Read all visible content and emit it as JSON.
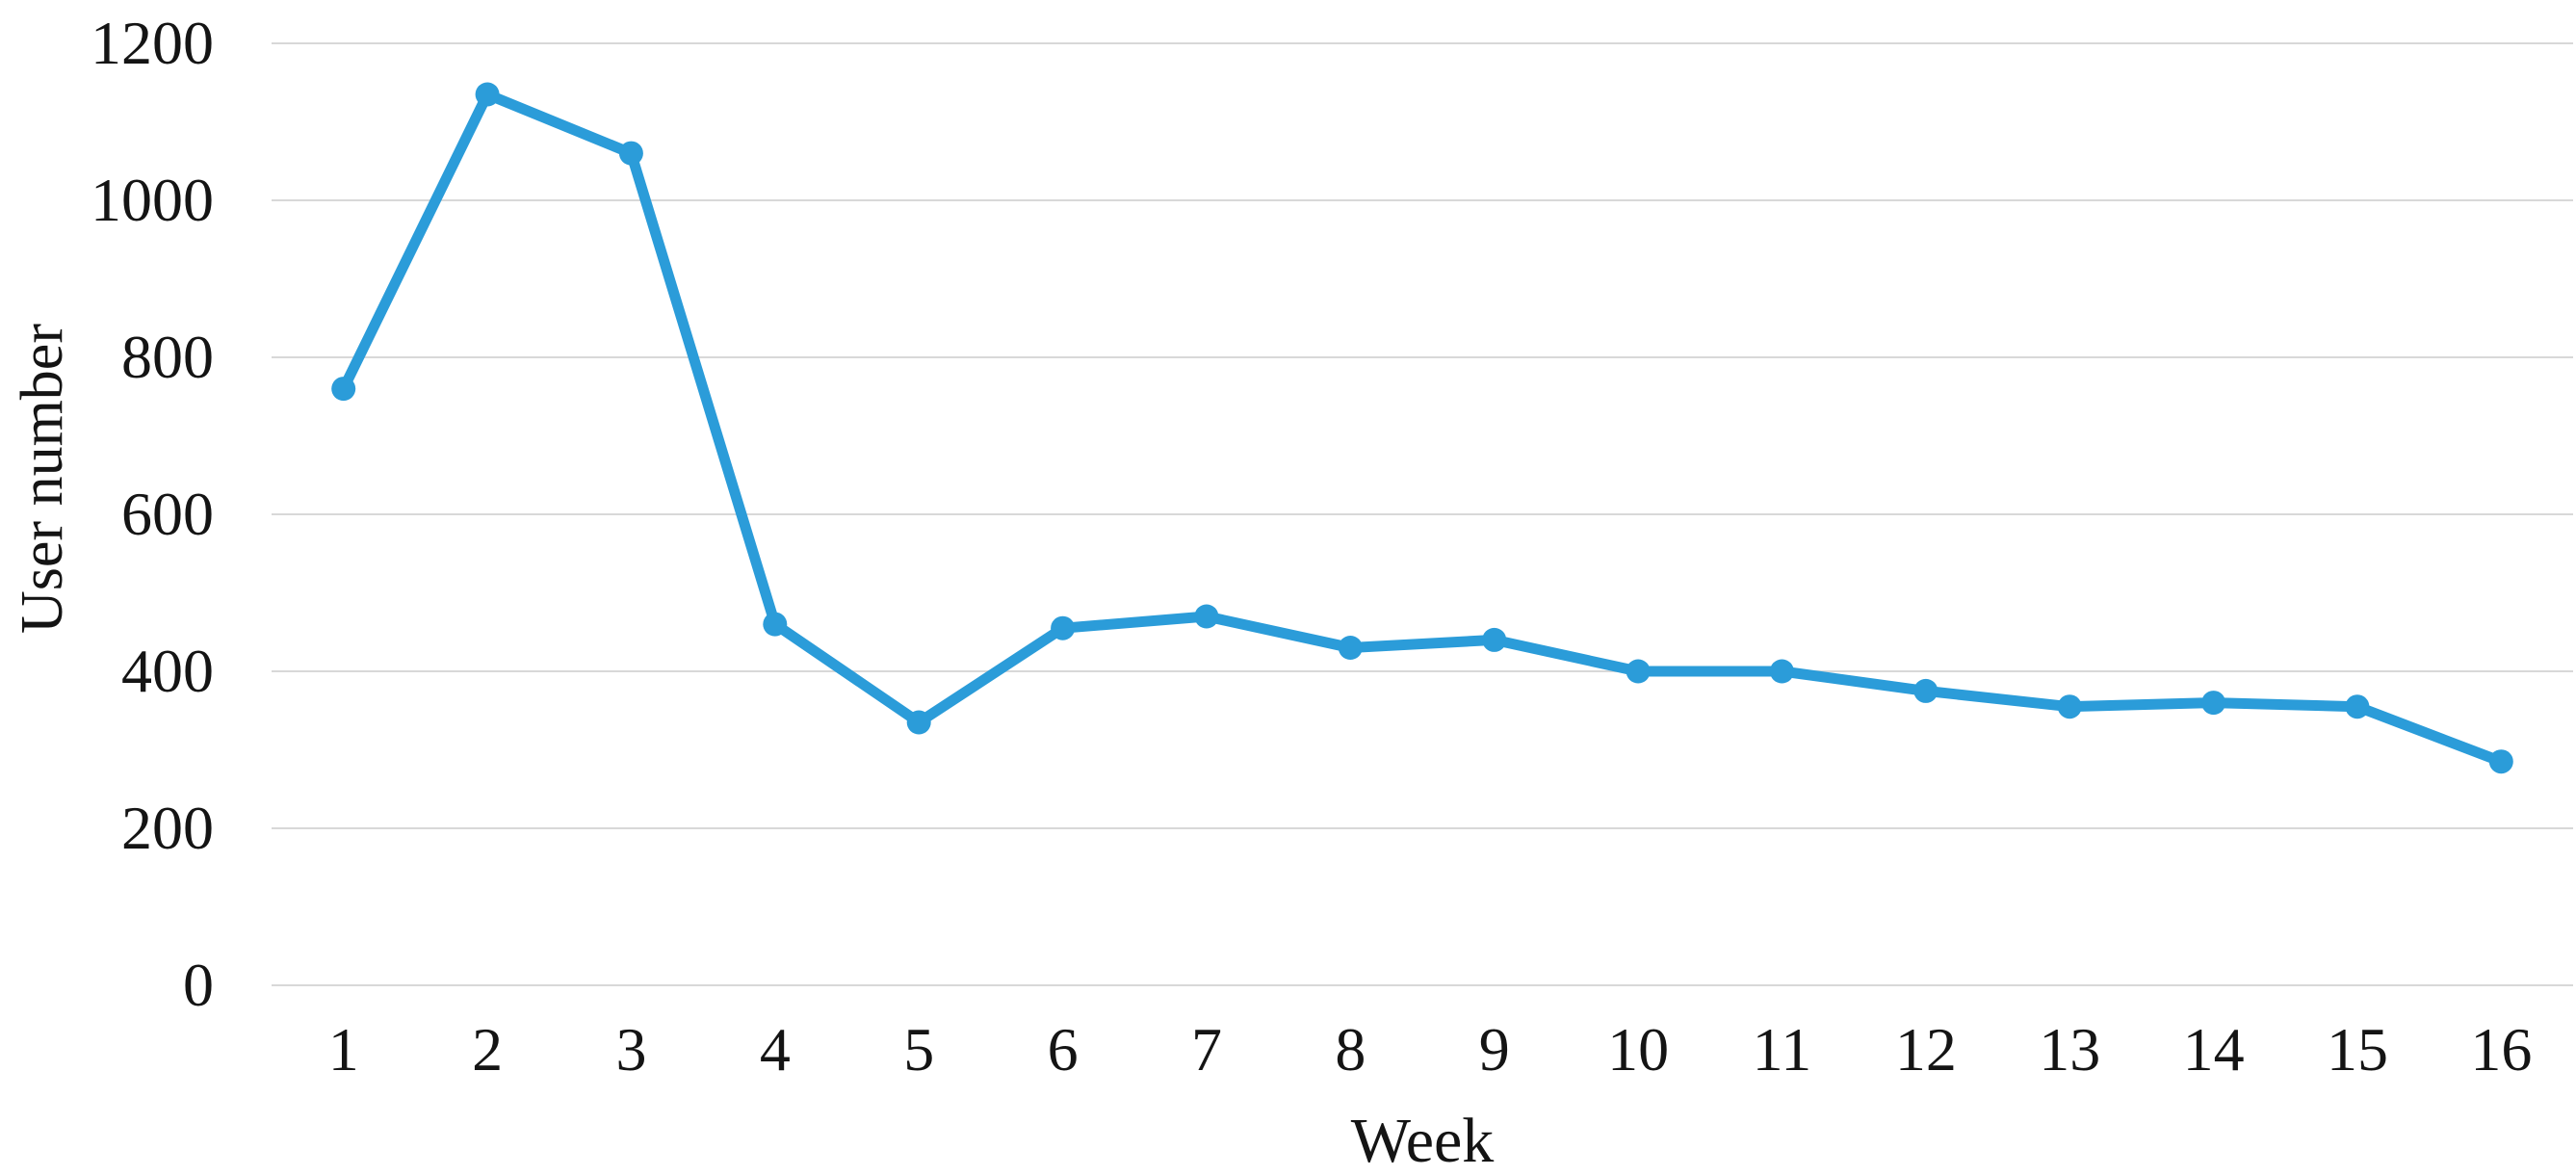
{
  "chart_data": {
    "type": "line",
    "title": "",
    "xlabel": "Week",
    "ylabel": "User number",
    "categories": [
      "1",
      "2",
      "3",
      "4",
      "5",
      "6",
      "7",
      "8",
      "9",
      "10",
      "11",
      "12",
      "13",
      "14",
      "15",
      "16"
    ],
    "series": [
      {
        "name": "User number",
        "values": [
          760,
          1135,
          1060,
          460,
          335,
          455,
          470,
          430,
          440,
          400,
          400,
          375,
          355,
          360,
          355,
          285
        ]
      }
    ],
    "ylim": [
      0,
      1200
    ],
    "ytick_interval": 200,
    "yticks": [
      0,
      200,
      400,
      600,
      800,
      1000,
      1200
    ],
    "grid": "horizontal-only",
    "legend_position": "none",
    "marker": "circle",
    "colors": {
      "line": "#2B9CD9",
      "marker": "#2B9CD9",
      "gridline": "#D8D8D8",
      "text": "#141414",
      "background": "#ffffff"
    }
  }
}
